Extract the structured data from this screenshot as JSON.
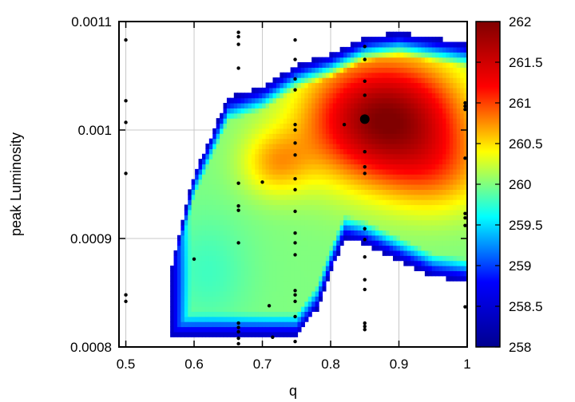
{
  "chart_data": {
    "type": "heatmap",
    "title": "",
    "xlabel": "q",
    "ylabel": "peak Luminosity",
    "xlim": [
      0.49,
      1.0
    ],
    "ylim": [
      0.0008,
      0.0011
    ],
    "x_ticks": [
      "0.5",
      "0.6",
      "0.7",
      "0.8",
      "0.9",
      "1"
    ],
    "x_tick_values": [
      0.5,
      0.6,
      0.7,
      0.8,
      0.9,
      1.0
    ],
    "y_ticks": [
      "0.0008",
      "0.0009",
      "0.001",
      "0.0011"
    ],
    "y_tick_values": [
      0.0008,
      0.0009,
      0.001,
      0.0011
    ],
    "grid": true,
    "colorbar": {
      "min": 258,
      "max": 262,
      "ticks": [
        "258",
        "258.5",
        "259",
        "259.5",
        "260",
        "260.5",
        "261",
        "261.5",
        "262"
      ],
      "tick_values": [
        258,
        258.5,
        259,
        259.5,
        260,
        260.5,
        261,
        261.5,
        262
      ],
      "colormap": [
        "#00008f",
        "#0000ff",
        "#00ffff",
        "#ffff00",
        "#ff0000",
        "#800000"
      ]
    },
    "field": {
      "description_of_shape": "value field over a bounded region in q / peak luminosity space",
      "region_upper": [
        [
          0.565,
          0.00087
        ],
        [
          0.6,
          0.00096
        ],
        [
          0.65,
          0.00103
        ],
        [
          0.7,
          0.00104
        ],
        [
          0.75,
          0.00106
        ],
        [
          0.8,
          0.00107
        ],
        [
          0.85,
          0.001085
        ],
        [
          0.9,
          0.00109
        ],
        [
          0.95,
          0.001085
        ],
        [
          1.0,
          0.00108
        ]
      ],
      "region_lower": [
        [
          0.565,
          0.00081
        ],
        [
          0.6,
          0.00081
        ],
        [
          0.65,
          0.00081
        ],
        [
          0.7,
          0.00081
        ],
        [
          0.75,
          0.00081
        ],
        [
          0.78,
          0.000835
        ],
        [
          0.8,
          0.00087
        ],
        [
          0.82,
          0.0009
        ],
        [
          0.85,
          0.000895
        ],
        [
          0.9,
          0.00088
        ],
        [
          0.95,
          0.000865
        ],
        [
          1.0,
          0.00086
        ]
      ],
      "peak": {
        "q": 0.88,
        "L": 0.00101,
        "value": 262
      },
      "baseline_value": 260.0
    },
    "highlight_point": {
      "q": 0.85,
      "L": 0.00101
    },
    "points": [
      {
        "q": 0.5,
        "L": 0.001083
      },
      {
        "q": 0.5,
        "L": 0.001027
      },
      {
        "q": 0.5,
        "L": 0.001007
      },
      {
        "q": 0.5,
        "L": 0.00096
      },
      {
        "q": 0.5,
        "L": 0.000848
      },
      {
        "q": 0.5,
        "L": 0.000842
      },
      {
        "q": 0.6,
        "L": 0.000881
      },
      {
        "q": 0.665,
        "L": 0.00109
      },
      {
        "q": 0.665,
        "L": 0.001086
      },
      {
        "q": 0.665,
        "L": 0.001079
      },
      {
        "q": 0.665,
        "L": 0.001057
      },
      {
        "q": 0.665,
        "L": 0.000951
      },
      {
        "q": 0.665,
        "L": 0.00093
      },
      {
        "q": 0.665,
        "L": 0.000926
      },
      {
        "q": 0.665,
        "L": 0.000896
      },
      {
        "q": 0.665,
        "L": 0.000822
      },
      {
        "q": 0.665,
        "L": 0.000818
      },
      {
        "q": 0.665,
        "L": 0.000814
      },
      {
        "q": 0.665,
        "L": 0.000808
      },
      {
        "q": 0.665,
        "L": 0.000803
      },
      {
        "q": 0.7,
        "L": 0.000952
      },
      {
        "q": 0.71,
        "L": 0.000838
      },
      {
        "q": 0.715,
        "L": 0.000809
      },
      {
        "q": 0.748,
        "L": 0.001083
      },
      {
        "q": 0.748,
        "L": 0.001065
      },
      {
        "q": 0.748,
        "L": 0.001047
      },
      {
        "q": 0.748,
        "L": 0.001037
      },
      {
        "q": 0.748,
        "L": 0.001005
      },
      {
        "q": 0.748,
        "L": 0.001
      },
      {
        "q": 0.748,
        "L": 0.000988
      },
      {
        "q": 0.748,
        "L": 0.000977
      },
      {
        "q": 0.748,
        "L": 0.000955
      },
      {
        "q": 0.748,
        "L": 0.000945
      },
      {
        "q": 0.748,
        "L": 0.000925
      },
      {
        "q": 0.748,
        "L": 0.000905
      },
      {
        "q": 0.748,
        "L": 0.000896
      },
      {
        "q": 0.748,
        "L": 0.000885
      },
      {
        "q": 0.748,
        "L": 0.000852
      },
      {
        "q": 0.748,
        "L": 0.000848
      },
      {
        "q": 0.748,
        "L": 0.000842
      },
      {
        "q": 0.748,
        "L": 0.000828
      },
      {
        "q": 0.748,
        "L": 0.000805
      },
      {
        "q": 0.82,
        "L": 0.001005
      },
      {
        "q": 0.85,
        "L": 0.001077
      },
      {
        "q": 0.85,
        "L": 0.001065
      },
      {
        "q": 0.85,
        "L": 0.001045
      },
      {
        "q": 0.85,
        "L": 0.001032
      },
      {
        "q": 0.85,
        "L": 0.00098
      },
      {
        "q": 0.85,
        "L": 0.000966
      },
      {
        "q": 0.85,
        "L": 0.00096
      },
      {
        "q": 0.85,
        "L": 0.000909
      },
      {
        "q": 0.85,
        "L": 0.000899
      },
      {
        "q": 0.85,
        "L": 0.000883
      },
      {
        "q": 0.85,
        "L": 0.000862
      },
      {
        "q": 0.85,
        "L": 0.000853
      },
      {
        "q": 0.85,
        "L": 0.000822
      },
      {
        "q": 0.85,
        "L": 0.000819
      },
      {
        "q": 0.85,
        "L": 0.000816
      },
      {
        "q": 0.997,
        "L": 0.001025
      },
      {
        "q": 0.997,
        "L": 0.001022
      },
      {
        "q": 0.997,
        "L": 0.001019
      },
      {
        "q": 0.997,
        "L": 0.000974
      },
      {
        "q": 0.997,
        "L": 0.000923
      },
      {
        "q": 0.997,
        "L": 0.000919
      },
      {
        "q": 0.997,
        "L": 0.000912
      },
      {
        "q": 0.997,
        "L": 0.000837
      }
    ]
  }
}
